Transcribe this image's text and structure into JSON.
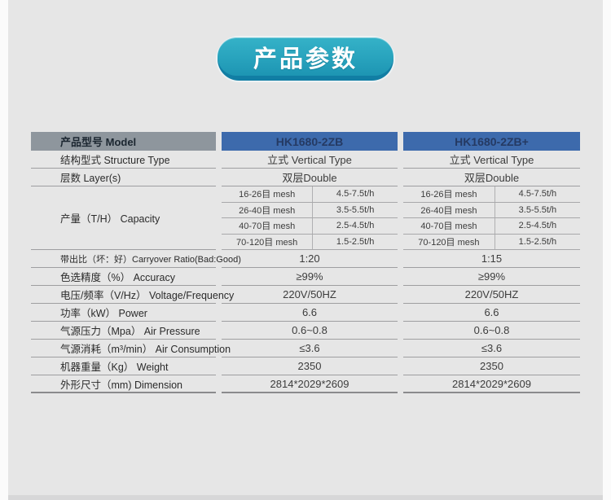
{
  "badge": {
    "label": "产品参数"
  },
  "colors": {
    "accent_teal": "#28a3bd",
    "accent_teal_dark": "#117ea4",
    "header_gray": "#8e969d",
    "header_blue": "#3d6aac",
    "page_bg": "#e6e6e6"
  },
  "table": {
    "model_header": {
      "label": "产品型号 Model",
      "models": [
        "HK1680-2ZB",
        "HK1680-2ZB+"
      ]
    },
    "structure": {
      "label": "结构型式 Structure Type",
      "values": [
        "立式  Vertical Type",
        "立式 Vertical  Type"
      ]
    },
    "layers": {
      "label": "层数 Layer(s)",
      "values": [
        "双层Double",
        "双层Double"
      ]
    },
    "capacity": {
      "label": "产量（T/H） Capacity",
      "rows": [
        {
          "mesh": "16-26目 mesh",
          "m1": "4.5-7.5t/h",
          "m2": "4.5-7.5t/h"
        },
        {
          "mesh": "26-40目 mesh",
          "m1": "3.5-5.5t/h",
          "m2": "3.5-5.5t/h"
        },
        {
          "mesh": "40-70目 mesh",
          "m1": "2.5-4.5t/h",
          "m2": "2.5-4.5t/h"
        },
        {
          "mesh": "70-120目 mesh",
          "m1": "1.5-2.5t/h",
          "m2": "1.5-2.5t/h"
        }
      ]
    },
    "rows": [
      {
        "label": "带出比（坏：好）Carryover Ratio(Bad:Good)",
        "m1": "1:20",
        "m2": "1:15"
      },
      {
        "label": "色选精度（%） Accuracy",
        "m1": "≥99%",
        "m2": "≥99%"
      },
      {
        "label": "电压/频率（V/Hz） Voltage/Frequency",
        "m1": "220V/50HZ",
        "m2": "220V/50HZ"
      },
      {
        "label": "功率（kW） Power",
        "m1": "6.6",
        "m2": "6.6"
      },
      {
        "label": "气源压力（Mpa） Air Pressure",
        "m1": "0.6~0.8",
        "m2": "0.6~0.8"
      },
      {
        "label": "气源消耗（m³/min） Air Consumption",
        "m1": "≤3.6",
        "m2": "≤3.6"
      },
      {
        "label": "机器重量（Kg） Weight",
        "m1": "2350",
        "m2": "2350"
      },
      {
        "label": "外形尺寸（mm) Dimension",
        "m1": "2814*2029*2609",
        "m2": "2814*2029*2609"
      }
    ]
  }
}
